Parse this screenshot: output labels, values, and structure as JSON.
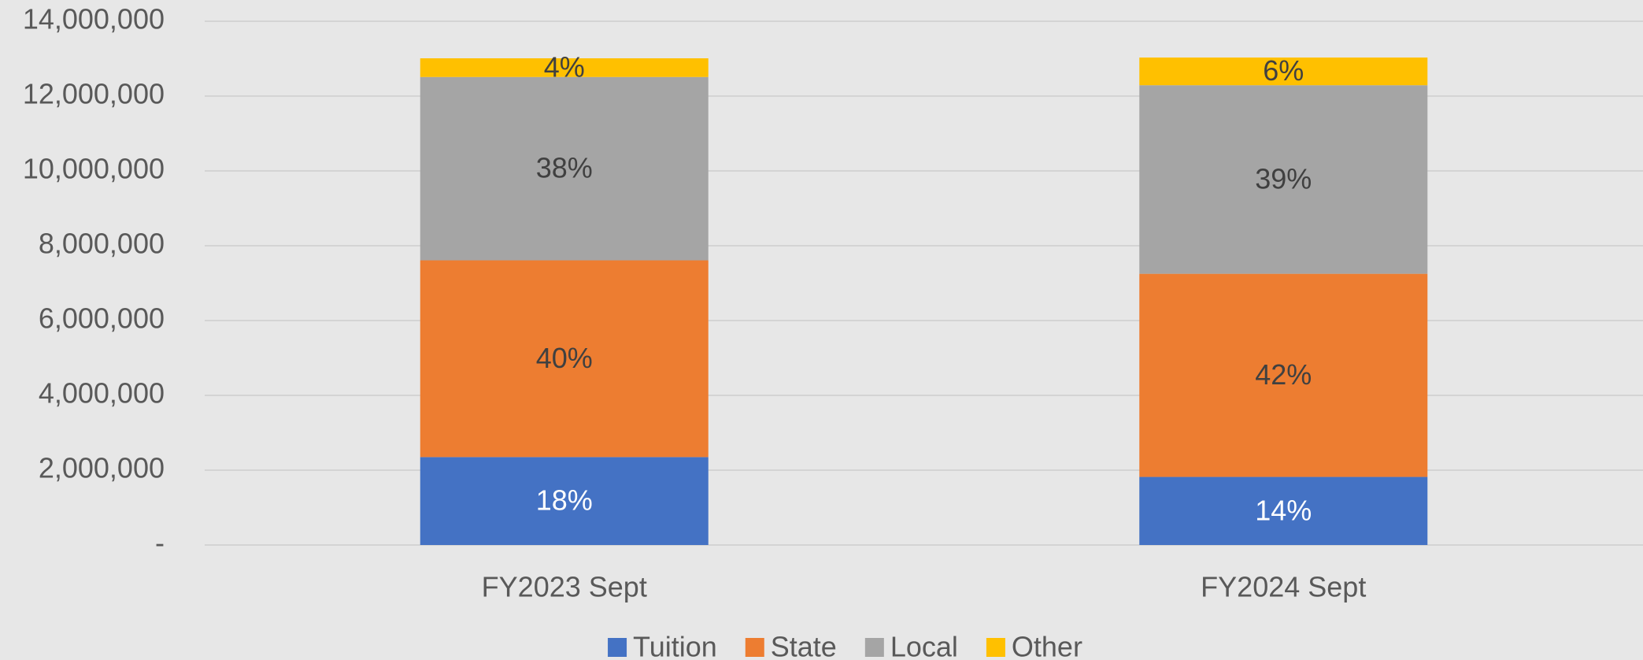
{
  "chart_data": {
    "type": "stacked_bar",
    "categories": [
      "FY2023 Sept",
      "FY2024 Sept"
    ],
    "series": [
      {
        "name": "Tuition",
        "color": "#4472c4",
        "values": [
          2350000,
          1820000
        ],
        "value_labels": [
          "18%",
          "14%"
        ]
      },
      {
        "name": "State",
        "color": "#ed7d31",
        "values": [
          5260000,
          5430000
        ],
        "value_labels": [
          "40%",
          "42%"
        ]
      },
      {
        "name": "Local",
        "color": "#a5a5a5",
        "values": [
          4900000,
          5040000
        ],
        "value_labels": [
          "38%",
          "39%"
        ]
      },
      {
        "name": "Other",
        "color": "#ffc000",
        "values": [
          500000,
          740000
        ],
        "value_labels": [
          "4%",
          "6%"
        ]
      }
    ],
    "ylim": [
      0,
      14000000
    ],
    "yticks": [
      {
        "value": 0,
        "label": "-"
      },
      {
        "value": 2000000,
        "label": "2,000,000"
      },
      {
        "value": 4000000,
        "label": "4,000,000"
      },
      {
        "value": 6000000,
        "label": "6,000,000"
      },
      {
        "value": 8000000,
        "label": "8,000,000"
      },
      {
        "value": 10000000,
        "label": "10,000,000"
      },
      {
        "value": 12000000,
        "label": "12,000,000"
      },
      {
        "value": 14000000,
        "label": "14,000,000"
      }
    ],
    "grid": true,
    "legend": "bottom"
  }
}
